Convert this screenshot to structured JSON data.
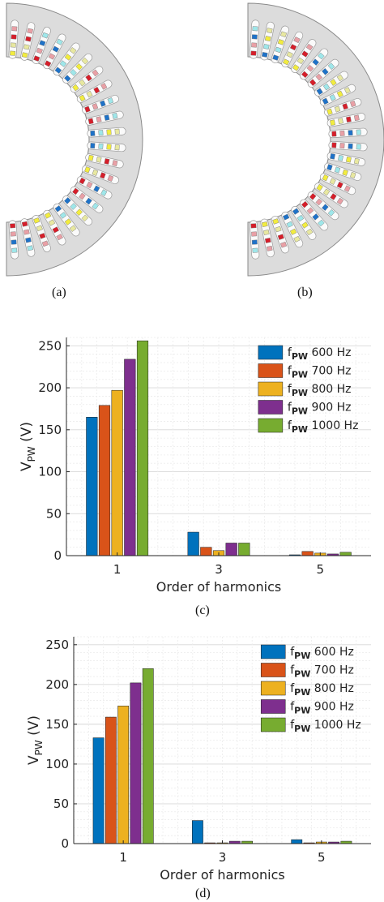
{
  "captions": {
    "a": "(a)",
    "b": "(b)",
    "c": "(c)",
    "d": "(d)"
  },
  "colors": {
    "stator_fill": "#dcdcdc",
    "stator_stroke": "#8a8a8a",
    "slot_fill": "#fafafa",
    "coil_colors": [
      "#f2ec3f",
      "#e8e8a0",
      "#d61e2a",
      "#e9a0a6",
      "#1e72c8",
      "#9fe7ea"
    ]
  },
  "chart_data": [
    {
      "type": "bar",
      "categories": [
        "1",
        "3",
        "5"
      ],
      "xlabel": "Order of harmonics",
      "ylabel": "V_PW (V)",
      "ylim": [
        0,
        260
      ],
      "yticks": [
        0,
        50,
        100,
        150,
        200,
        250
      ],
      "grid": true,
      "legend_position": "top-right",
      "series": [
        {
          "name": "f_PW 600 Hz",
          "color": "#0072BD",
          "values": [
            165,
            28,
            1
          ]
        },
        {
          "name": "f_PW 700 Hz",
          "color": "#D95319",
          "values": [
            179,
            10,
            5
          ]
        },
        {
          "name": "f_PW 800 Hz",
          "color": "#EDB120",
          "values": [
            197,
            6,
            3
          ]
        },
        {
          "name": "f_PW 900 Hz",
          "color": "#7E2F8E",
          "values": [
            234,
            15,
            2
          ]
        },
        {
          "name": "f_PW 1000 Hz",
          "color": "#77AC30",
          "values": [
            256,
            15,
            4
          ]
        }
      ]
    },
    {
      "type": "bar",
      "categories": [
        "1",
        "3",
        "5"
      ],
      "xlabel": "Order of harmonics",
      "ylabel": "V_PW (V)",
      "ylim": [
        0,
        260
      ],
      "yticks": [
        0,
        50,
        100,
        150,
        200,
        250
      ],
      "grid": true,
      "legend_position": "top-right",
      "series": [
        {
          "name": "f_PW 600 Hz",
          "color": "#0072BD",
          "values": [
            133,
            29,
            5
          ]
        },
        {
          "name": "f_PW 700 Hz",
          "color": "#D95319",
          "values": [
            159,
            1,
            1
          ]
        },
        {
          "name": "f_PW 800 Hz",
          "color": "#EDB120",
          "values": [
            173,
            1,
            2
          ]
        },
        {
          "name": "f_PW 900 Hz",
          "color": "#7E2F8E",
          "values": [
            202,
            3,
            2
          ]
        },
        {
          "name": "f_PW 1000 Hz",
          "color": "#77AC30",
          "values": [
            220,
            3,
            3
          ]
        }
      ]
    }
  ]
}
